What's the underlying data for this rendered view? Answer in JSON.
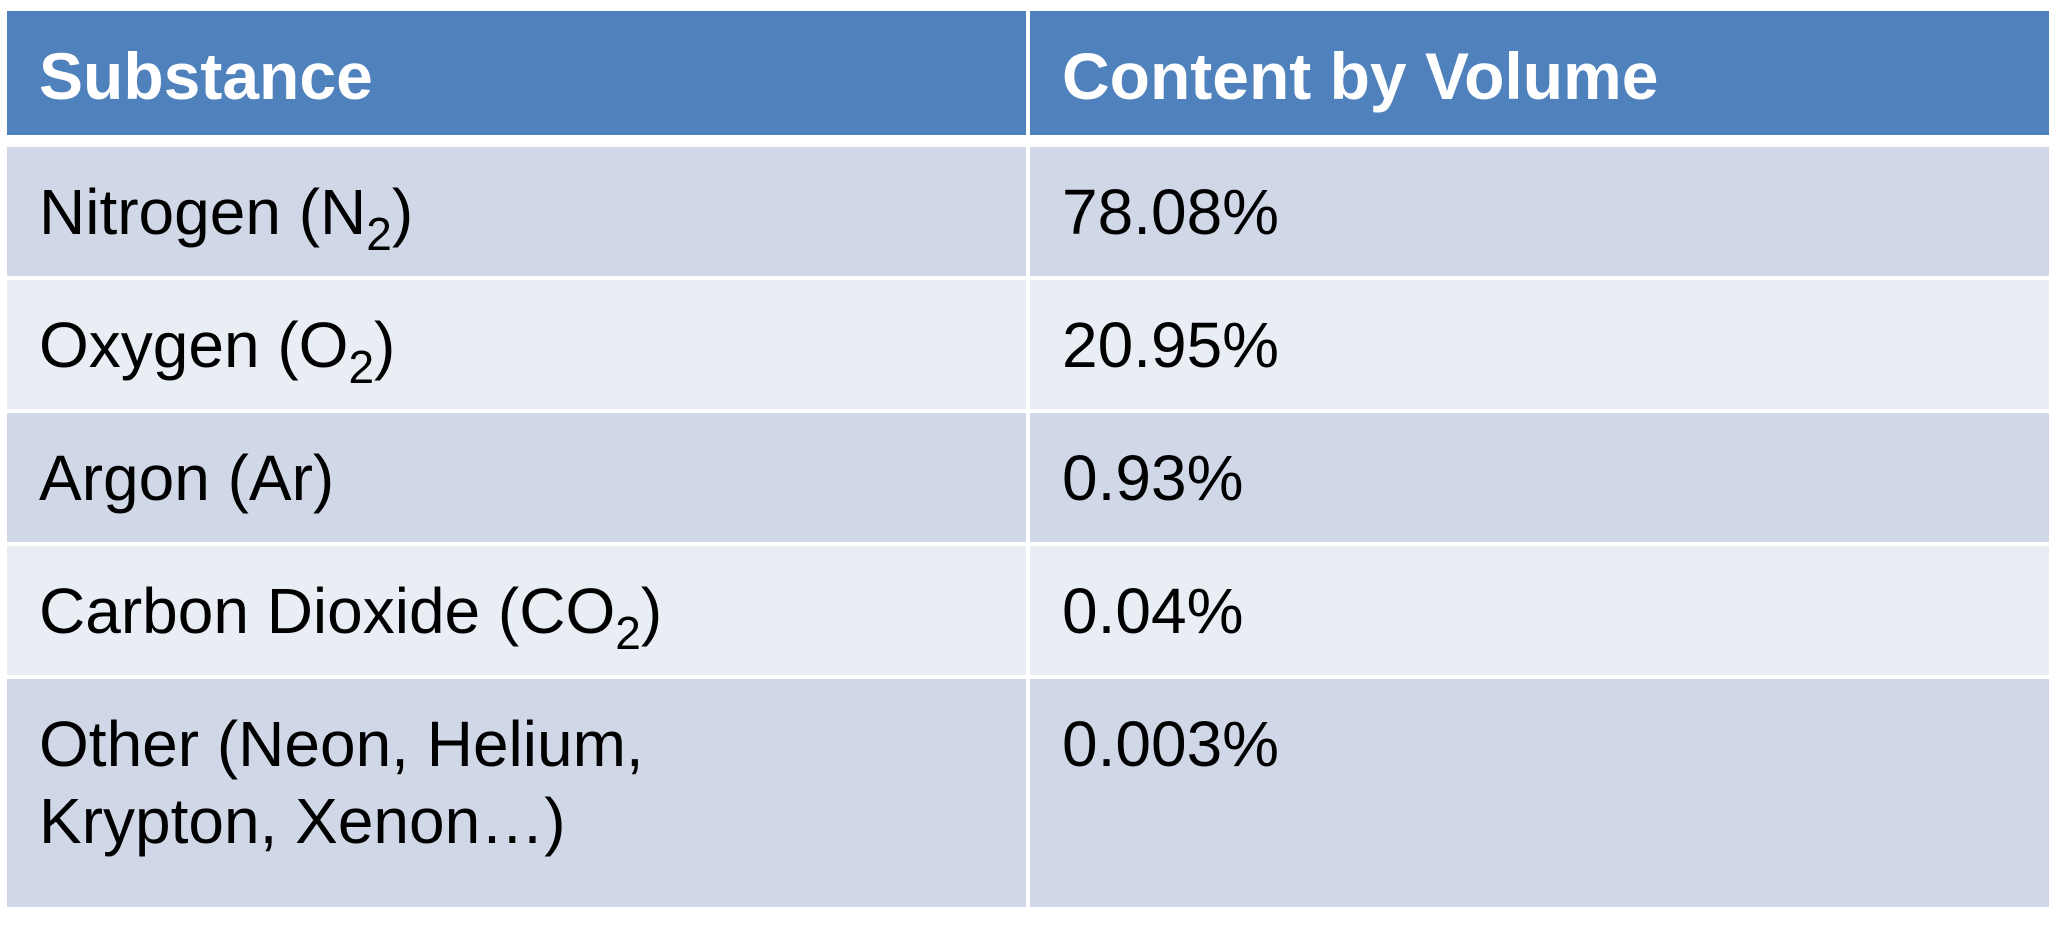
{
  "table": {
    "headers": [
      "Substance",
      "Content by Volume"
    ],
    "rows": [
      {
        "name": "Nitrogen (N",
        "sub": "2",
        "close": ")",
        "value": "78.08%"
      },
      {
        "name": "Oxygen (O",
        "sub": "2",
        "close": ")",
        "value": "20.95%"
      },
      {
        "name": "Argon (Ar)",
        "sub": "",
        "close": "",
        "value": "0.93%"
      },
      {
        "name": "Carbon Dioxide (CO",
        "sub": "2",
        "close": ")",
        "value": "0.04%"
      },
      {
        "name": "Other (Neon, Helium, Krypton, Xenon…)",
        "sub": "",
        "close": "",
        "value": "0.003%"
      }
    ]
  },
  "colors": {
    "header_bg": "#4f81bd",
    "row_odd_bg": "#d0d8e8",
    "row_even_bg": "#e9edf4"
  }
}
